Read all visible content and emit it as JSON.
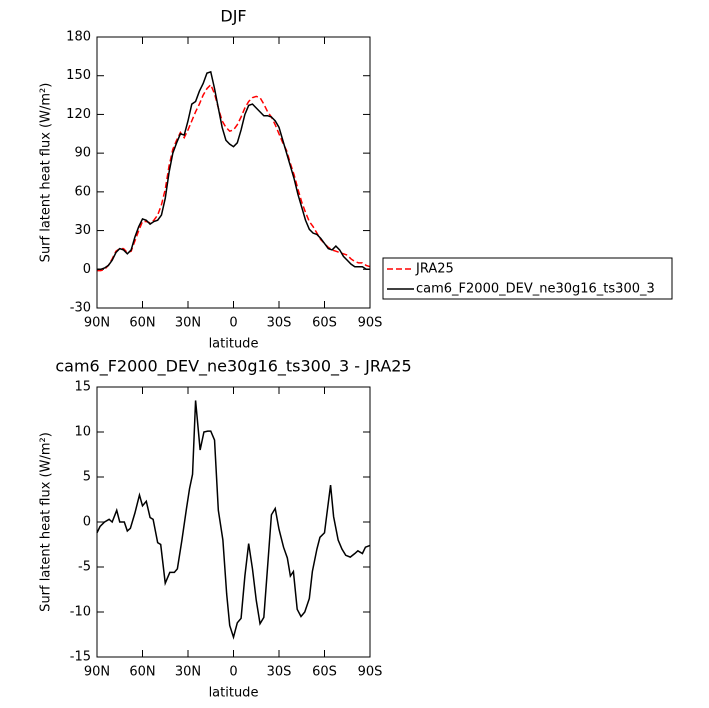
{
  "chart_data": [
    {
      "type": "line",
      "title": "DJF",
      "x_label": "latitude",
      "y_label": "Surf latent heat flux (W/m²)",
      "x": [
        90,
        87.5,
        85,
        82.5,
        80,
        77.5,
        75,
        72.5,
        70,
        67.5,
        65,
        62.5,
        60,
        57.5,
        55,
        52.5,
        50,
        47.5,
        45,
        42.5,
        40,
        37.5,
        35,
        32.5,
        30,
        27.5,
        25,
        22.5,
        20,
        17.5,
        15,
        12.5,
        10,
        7.5,
        5,
        2.5,
        0,
        -2.5,
        -5,
        -7.5,
        -10,
        -12.5,
        -15,
        -17.5,
        -20,
        -22.5,
        -25,
        -27.5,
        -30,
        -32.5,
        -35,
        -37.5,
        -40,
        -42.5,
        -45,
        -47.5,
        -50,
        -52.5,
        -55,
        -57.5,
        -60,
        -62.5,
        -65,
        -67.5,
        -70,
        -72.5,
        -75,
        -77.5,
        -80,
        -82.5,
        -85,
        -87.5,
        -90
      ],
      "series": [
        {
          "name": "JRA25",
          "color": "#ff0000",
          "line_style": "dashed",
          "values": [
            -1,
            -1,
            0,
            3,
            8,
            14,
            16,
            16,
            13,
            14,
            22,
            30,
            37,
            37,
            36,
            38,
            42,
            50,
            62,
            80,
            93,
            100,
            106,
            102,
            108,
            115,
            122,
            128,
            135,
            140,
            143,
            136,
            125,
            115,
            110,
            107,
            108,
            112,
            118,
            125,
            130,
            133,
            134,
            133,
            128,
            122,
            118,
            112,
            105,
            98,
            92,
            82,
            73,
            62,
            52,
            44,
            37,
            33,
            28,
            23,
            20,
            17,
            15,
            14,
            13,
            12,
            11,
            8,
            6,
            5,
            5,
            3,
            2
          ]
        },
        {
          "name": "cam6_F2000_DEV_ne30g16_ts300_3",
          "color": "#000000",
          "line_style": "solid",
          "values": [
            0,
            0,
            1,
            3,
            7,
            13,
            16,
            15,
            12,
            15,
            25,
            33,
            39,
            38,
            35,
            37,
            38,
            42,
            55,
            75,
            90,
            98,
            105,
            104,
            115,
            128,
            130,
            138,
            144,
            152,
            153,
            140,
            125,
            110,
            100,
            97,
            95,
            98,
            108,
            120,
            127,
            128,
            125,
            122,
            119,
            119,
            118,
            115,
            110,
            100,
            90,
            80,
            70,
            58,
            48,
            38,
            31,
            28,
            27,
            24,
            20,
            16,
            15,
            18,
            15,
            10,
            7,
            4,
            2,
            2,
            2,
            0,
            0
          ]
        }
      ],
      "xlim": [
        90,
        -90
      ],
      "xticks": [
        {
          "value": 90,
          "label": "90N"
        },
        {
          "value": 60,
          "label": "60N"
        },
        {
          "value": 30,
          "label": "30N"
        },
        0,
        {
          "value": -30,
          "label": "30S"
        },
        {
          "value": -60,
          "label": "60S"
        },
        {
          "value": -90,
          "label": "90S"
        }
      ],
      "ylim": [
        -30,
        180
      ],
      "yticks": [
        -30,
        0,
        30,
        60,
        90,
        120,
        150,
        180
      ],
      "legend": "right"
    },
    {
      "type": "line",
      "title": "cam6_F2000_DEV_ne30g16_ts300_3 - JRA25",
      "x_label": "latitude",
      "y_label": "Surf latent heat flux (W/m²)",
      "x": [
        90,
        88,
        85,
        82,
        80,
        77,
        75,
        72,
        70,
        68,
        65,
        62,
        60,
        57.5,
        55,
        53,
        50,
        48,
        45,
        42,
        39,
        37,
        34,
        31,
        29,
        27,
        25,
        22,
        19.5,
        17,
        15,
        12.5,
        10,
        7,
        4.5,
        2.5,
        0,
        -2.5,
        -5,
        -7.5,
        -10,
        -12.5,
        -15,
        -17.5,
        -20,
        -23,
        -25,
        -27.5,
        -30,
        -33,
        -35.5,
        -37.5,
        -39.5,
        -42,
        -44.5,
        -47,
        -50,
        -52,
        -55,
        -57,
        -60,
        -61.5,
        -64,
        -66,
        -69,
        -71.5,
        -74,
        -77,
        -80,
        -82,
        -85,
        -87,
        -90
      ],
      "values": [
        -1.2,
        -0.5,
        0,
        0.3,
        0,
        1.3,
        0,
        0,
        -1,
        -0.7,
        1,
        3,
        1.8,
        2.3,
        0.5,
        0.3,
        -2.3,
        -2.5,
        -6.8,
        -5.6,
        -5.6,
        -5.2,
        -2,
        1.5,
        3.7,
        5.3,
        13.5,
        8,
        10,
        10.1,
        10.1,
        9.1,
        1.3,
        -2,
        -8,
        -11.5,
        -12.8,
        -11.2,
        -10.7,
        -6,
        -2.4,
        -5.2,
        -8.7,
        -11.3,
        -10.6,
        -3.8,
        0.8,
        1.5,
        -0.8,
        -2.8,
        -4,
        -6,
        -5.5,
        -9.7,
        -10.5,
        -10,
        -8.5,
        -5.5,
        -3,
        -1.7,
        -1.2,
        0.8,
        4.1,
        0.6,
        -2,
        -3,
        -3.7,
        -3.9,
        -3.5,
        -3.2,
        -3.5,
        -2.8,
        -2.6
      ],
      "color": "#000000",
      "xlim": [
        90,
        -90
      ],
      "xticks": [
        {
          "value": 90,
          "label": "90N"
        },
        {
          "value": 60,
          "label": "60N"
        },
        {
          "value": 30,
          "label": "30N"
        },
        0,
        {
          "value": -30,
          "label": "30S"
        },
        {
          "value": -60,
          "label": "60S"
        },
        {
          "value": -90,
          "label": "90S"
        }
      ],
      "ylim": [
        -15,
        15
      ],
      "yticks": [
        -15,
        -10,
        -5,
        0,
        5,
        10,
        15
      ]
    }
  ]
}
